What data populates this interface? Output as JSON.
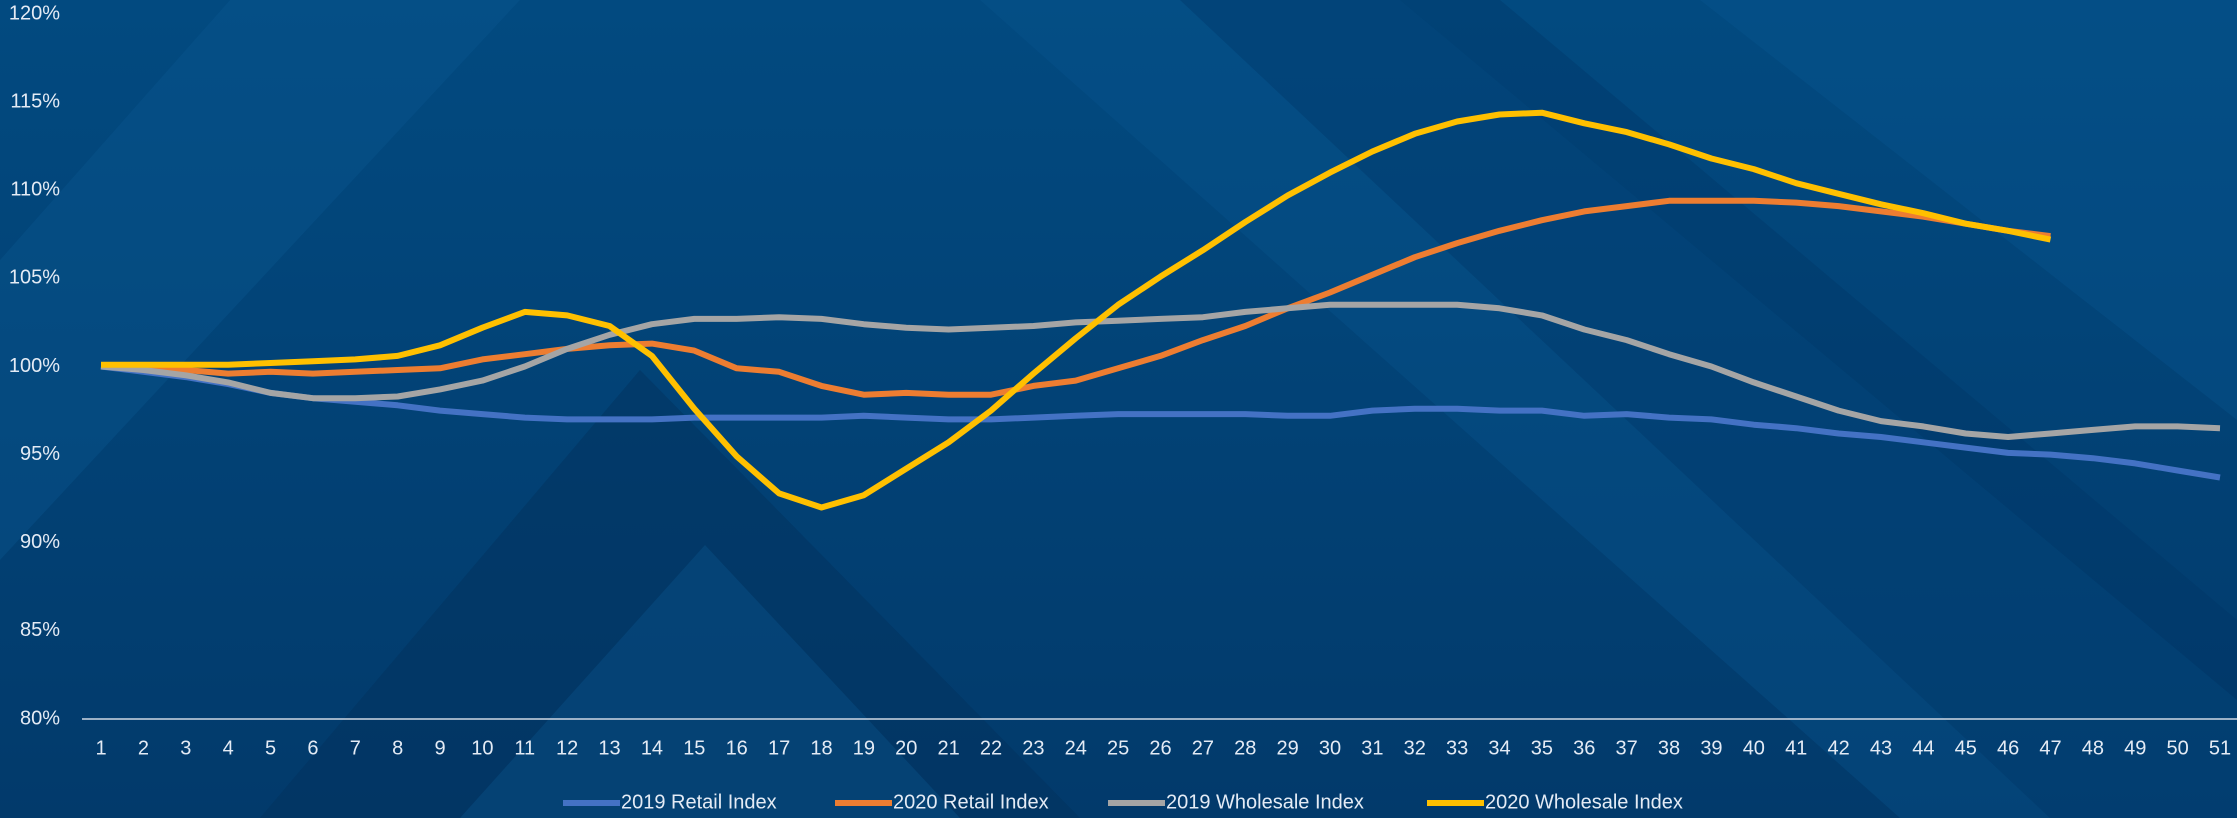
{
  "chart_data": {
    "type": "line",
    "categories": [
      "1",
      "2",
      "3",
      "4",
      "5",
      "6",
      "7",
      "8",
      "9",
      "10",
      "11",
      "12",
      "13",
      "14",
      "15",
      "16",
      "17",
      "18",
      "19",
      "20",
      "21",
      "22",
      "23",
      "24",
      "25",
      "26",
      "27",
      "28",
      "29",
      "30",
      "31",
      "32",
      "33",
      "34",
      "35",
      "36",
      "37",
      "38",
      "39",
      "40",
      "41",
      "42",
      "43",
      "44",
      "45",
      "46",
      "47",
      "48",
      "49",
      "50",
      "51"
    ],
    "series": [
      {
        "name": "2019 Retail Index",
        "color": "#4472c4",
        "values": [
          100,
          99.7,
          99.4,
          99.0,
          98.5,
          98.2,
          98.0,
          97.8,
          97.5,
          97.3,
          97.1,
          97.0,
          97.0,
          97.0,
          97.1,
          97.1,
          97.1,
          97.1,
          97.2,
          97.1,
          97.0,
          97.0,
          97.1,
          97.2,
          97.3,
          97.3,
          97.3,
          97.3,
          97.2,
          97.2,
          97.5,
          97.6,
          97.6,
          97.5,
          97.5,
          97.2,
          97.3,
          97.1,
          97.0,
          96.7,
          96.5,
          96.2,
          96.0,
          95.7,
          95.4,
          95.1,
          95.0,
          94.8,
          94.5,
          94.1,
          93.7
        ]
      },
      {
        "name": "2020 Retail Index",
        "color": "#ed7d31",
        "values": [
          100,
          100,
          99.8,
          99.6,
          99.7,
          99.6,
          99.7,
          99.8,
          99.9,
          100.4,
          100.7,
          101.0,
          101.2,
          101.3,
          100.9,
          99.9,
          99.7,
          98.9,
          98.4,
          98.5,
          98.4,
          98.4,
          98.9,
          99.2,
          99.9,
          100.6,
          101.5,
          102.3,
          103.3,
          104.2,
          105.2,
          106.2,
          107.0,
          107.7,
          108.3,
          108.8,
          109.1,
          109.4,
          109.4,
          109.4,
          109.3,
          109.1,
          108.8,
          108.5,
          108.1,
          107.7,
          107.4,
          null,
          null,
          null,
          null
        ]
      },
      {
        "name": "2019 Wholesale Index",
        "color": "#a5a5a5",
        "values": [
          100,
          99.8,
          99.5,
          99.1,
          98.5,
          98.2,
          98.2,
          98.3,
          98.7,
          99.2,
          100.0,
          101.0,
          101.8,
          102.4,
          102.7,
          102.7,
          102.8,
          102.7,
          102.4,
          102.2,
          102.1,
          102.2,
          102.3,
          102.5,
          102.6,
          102.7,
          102.8,
          103.1,
          103.3,
          103.5,
          103.5,
          103.5,
          103.5,
          103.3,
          102.9,
          102.1,
          101.5,
          100.7,
          100.0,
          99.1,
          98.3,
          97.5,
          96.9,
          96.6,
          96.2,
          96.0,
          96.2,
          96.4,
          96.6,
          96.6,
          96.5
        ]
      },
      {
        "name": "2020 Wholesale Index",
        "color": "#ffc000",
        "values": [
          100.1,
          100.1,
          100.1,
          100.1,
          100.2,
          100.3,
          100.4,
          100.6,
          101.2,
          102.2,
          103.1,
          102.9,
          102.3,
          100.6,
          97.6,
          94.9,
          92.8,
          92.0,
          92.7,
          94.2,
          95.7,
          97.5,
          99.6,
          101.6,
          103.5,
          105.1,
          106.6,
          108.2,
          109.7,
          111.0,
          112.2,
          113.2,
          113.9,
          114.3,
          114.4,
          113.8,
          113.3,
          112.6,
          111.8,
          111.2,
          110.4,
          109.8,
          109.2,
          108.7,
          108.1,
          107.7,
          107.2,
          null,
          null,
          null,
          null
        ]
      }
    ],
    "ylim": [
      80,
      120
    ],
    "yticks": [
      {
        "value": 80,
        "label": "80%"
      },
      {
        "value": 85,
        "label": "85%"
      },
      {
        "value": 90,
        "label": "90%"
      },
      {
        "value": 95,
        "label": "95%"
      },
      {
        "value": 100,
        "label": "100%"
      },
      {
        "value": 105,
        "label": "105%"
      },
      {
        "value": 110,
        "label": "110%"
      },
      {
        "value": 115,
        "label": "115%"
      },
      {
        "value": 120,
        "label": "120%"
      }
    ],
    "legend": "bottom"
  }
}
